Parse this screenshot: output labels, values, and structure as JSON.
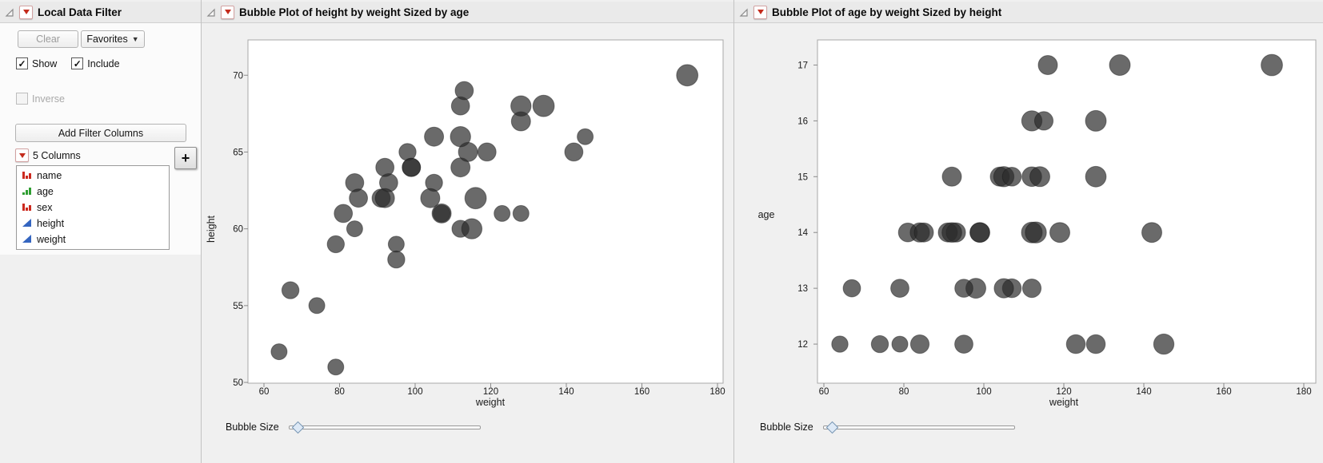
{
  "filter_panel": {
    "title": "Local Data Filter",
    "clear_label": "Clear",
    "favorites_label": "Favorites",
    "show_label": "Show",
    "include_label": "Include",
    "inverse_label": "Inverse",
    "add_filter_columns_label": "Add Filter Columns",
    "columns_header": "5 Columns",
    "plus_label": "+",
    "columns": [
      {
        "label": "name",
        "type": "nominal",
        "icon": "red-bars-icon"
      },
      {
        "label": "age",
        "type": "ordinal",
        "icon": "green-bars-icon"
      },
      {
        "label": "sex",
        "type": "nominal",
        "icon": "red-bars-icon"
      },
      {
        "label": "height",
        "type": "continuous",
        "icon": "blue-triangle-icon"
      },
      {
        "label": "weight",
        "type": "continuous",
        "icon": "blue-triangle-icon"
      }
    ]
  },
  "charts": [
    {
      "header": "Bubble Plot of height by weight Sized by age",
      "bubble_size_label": "Bubble Size"
    },
    {
      "header": "Bubble Plot of age by weight Sized by height",
      "bubble_size_label": "Bubble Size"
    }
  ],
  "colors": {
    "bubble": "#2b2b2b",
    "accent_red_triangle": "#c42b1c",
    "panel_bg": "#f0f0f0",
    "plot_bg": "#ffffff"
  },
  "chart_data": [
    {
      "type": "bubble",
      "title": "Bubble Plot of height by weight Sized by age",
      "xlabel": "weight",
      "ylabel": "height",
      "size_label": "age",
      "xlim": [
        60,
        180
      ],
      "xticks": [
        60,
        80,
        100,
        120,
        140,
        160,
        180
      ],
      "ylim": [
        50,
        72
      ],
      "yticks": [
        50,
        55,
        60,
        65,
        70
      ],
      "grid": false,
      "legend": "none",
      "point_fields": [
        "weight",
        "height",
        "age"
      ],
      "points": [
        [
          95,
          59,
          12
        ],
        [
          123,
          61,
          12
        ],
        [
          74,
          55,
          12
        ],
        [
          145,
          66,
          12
        ],
        [
          64,
          52,
          12
        ],
        [
          84,
          60,
          12
        ],
        [
          128,
          61,
          12
        ],
        [
          79,
          51,
          12
        ],
        [
          112,
          60,
          13
        ],
        [
          107,
          61,
          13
        ],
        [
          67,
          56,
          13
        ],
        [
          98,
          65,
          13
        ],
        [
          105,
          63,
          13
        ],
        [
          95,
          58,
          13
        ],
        [
          79,
          59,
          13
        ],
        [
          81,
          61,
          14
        ],
        [
          91,
          62,
          14
        ],
        [
          142,
          65,
          14
        ],
        [
          84,
          63,
          14
        ],
        [
          85,
          62,
          14
        ],
        [
          93,
          63,
          14
        ],
        [
          99,
          64,
          14
        ],
        [
          119,
          65,
          14
        ],
        [
          92,
          64,
          14
        ],
        [
          112,
          68,
          14
        ],
        [
          99,
          64,
          14
        ],
        [
          113,
          69,
          14
        ],
        [
          92,
          62,
          15
        ],
        [
          104,
          62,
          15
        ],
        [
          105,
          66,
          15
        ],
        [
          107,
          61,
          15
        ],
        [
          112,
          64,
          15
        ],
        [
          114,
          65,
          15
        ],
        [
          128,
          67,
          15
        ],
        [
          112,
          66,
          16
        ],
        [
          115,
          60,
          16
        ],
        [
          128,
          68,
          16
        ],
        [
          116,
          62,
          17
        ],
        [
          134,
          68,
          17
        ],
        [
          172,
          70,
          17
        ]
      ]
    },
    {
      "type": "bubble",
      "title": "Bubble Plot of age by weight Sized by height",
      "xlabel": "weight",
      "ylabel": "age",
      "size_label": "height",
      "xlim": [
        60,
        180
      ],
      "xticks": [
        60,
        80,
        100,
        120,
        140,
        160,
        180
      ],
      "ylim": [
        12,
        17
      ],
      "yticks": [
        12,
        13,
        14,
        15,
        16,
        17
      ],
      "grid": false,
      "legend": "none",
      "point_fields": [
        "weight",
        "age",
        "height"
      ],
      "points": [
        [
          95,
          12,
          59
        ],
        [
          123,
          12,
          61
        ],
        [
          74,
          12,
          55
        ],
        [
          145,
          12,
          66
        ],
        [
          64,
          12,
          52
        ],
        [
          84,
          12,
          60
        ],
        [
          128,
          12,
          61
        ],
        [
          79,
          12,
          51
        ],
        [
          112,
          13,
          60
        ],
        [
          107,
          13,
          61
        ],
        [
          67,
          13,
          56
        ],
        [
          98,
          13,
          65
        ],
        [
          105,
          13,
          63
        ],
        [
          95,
          13,
          58
        ],
        [
          79,
          13,
          59
        ],
        [
          81,
          14,
          61
        ],
        [
          91,
          14,
          62
        ],
        [
          142,
          14,
          65
        ],
        [
          84,
          14,
          63
        ],
        [
          85,
          14,
          62
        ],
        [
          93,
          14,
          63
        ],
        [
          99,
          14,
          64
        ],
        [
          119,
          14,
          65
        ],
        [
          92,
          14,
          64
        ],
        [
          112,
          14,
          68
        ],
        [
          99,
          14,
          64
        ],
        [
          113,
          14,
          69
        ],
        [
          92,
          15,
          62
        ],
        [
          104,
          15,
          62
        ],
        [
          105,
          15,
          66
        ],
        [
          107,
          15,
          61
        ],
        [
          112,
          15,
          64
        ],
        [
          114,
          15,
          65
        ],
        [
          128,
          15,
          67
        ],
        [
          112,
          16,
          66
        ],
        [
          115,
          16,
          60
        ],
        [
          128,
          16,
          68
        ],
        [
          116,
          17,
          62
        ],
        [
          134,
          17,
          68
        ],
        [
          172,
          17,
          70
        ]
      ]
    }
  ]
}
